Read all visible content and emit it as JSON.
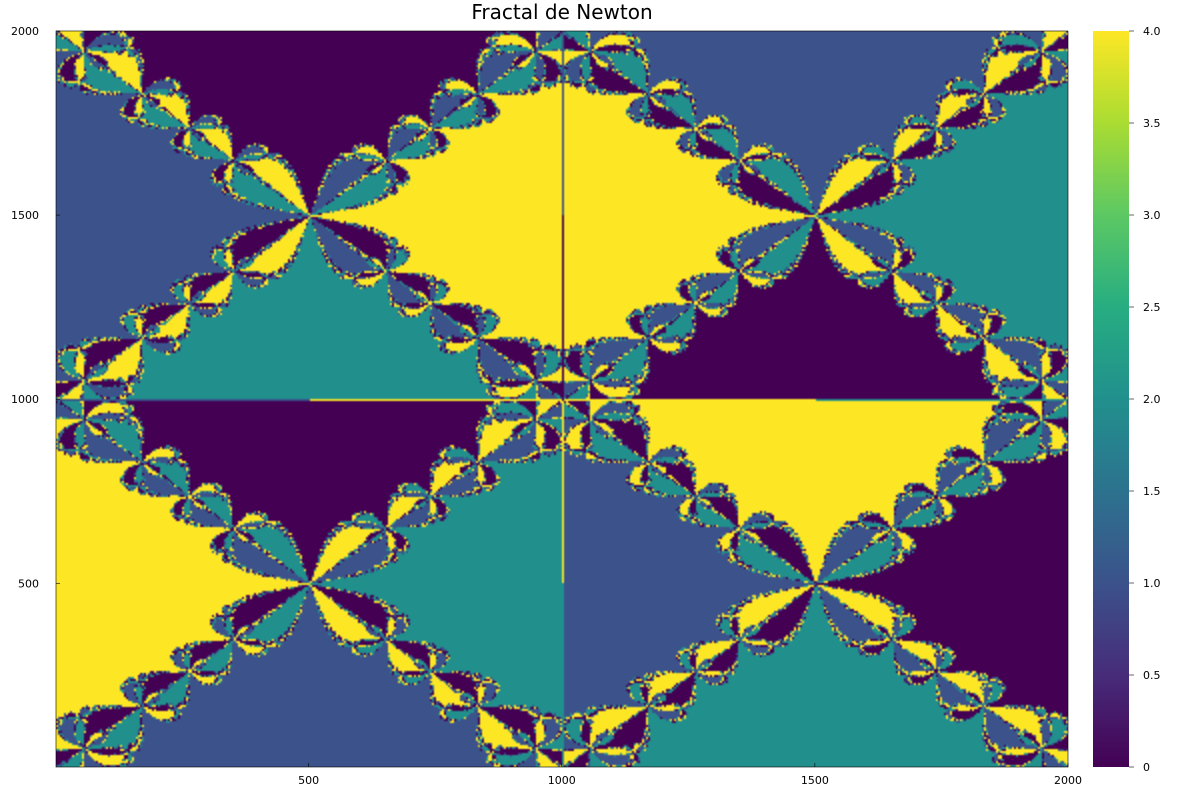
{
  "chart_data": {
    "type": "heatmap",
    "title": "Fractal de Newton",
    "xlabel": "",
    "ylabel": "",
    "xlim": [
      1,
      2000
    ],
    "ylim": [
      1,
      2000
    ],
    "x_ticks": [
      500,
      1000,
      1500,
      2000
    ],
    "x_tick_labels": [
      "500",
      "1000",
      "1500",
      "2000"
    ],
    "y_ticks": [
      500,
      1000,
      1500,
      2000
    ],
    "y_tick_labels": [
      "500",
      "1000",
      "1500",
      "2000"
    ],
    "colorbar": {
      "range": [
        0,
        4
      ],
      "ticks": [
        0,
        0.5,
        1,
        1.5,
        2,
        2.5,
        3,
        3.5,
        4
      ],
      "tick_labels": [
        "0",
        "0.5",
        "1.0",
        "1.5",
        "2.0",
        "2.5",
        "3.0",
        "3.5",
        "4.0"
      ],
      "colormap": "viridis"
    },
    "values_present": [
      0,
      1,
      2,
      4
    ],
    "grid": false,
    "legend": "none"
  },
  "colors": {
    "value_0": "#440154",
    "value_1": "#3b528b",
    "value_2": "#21908d",
    "value_4": "#fde725",
    "axis": "#000000"
  }
}
